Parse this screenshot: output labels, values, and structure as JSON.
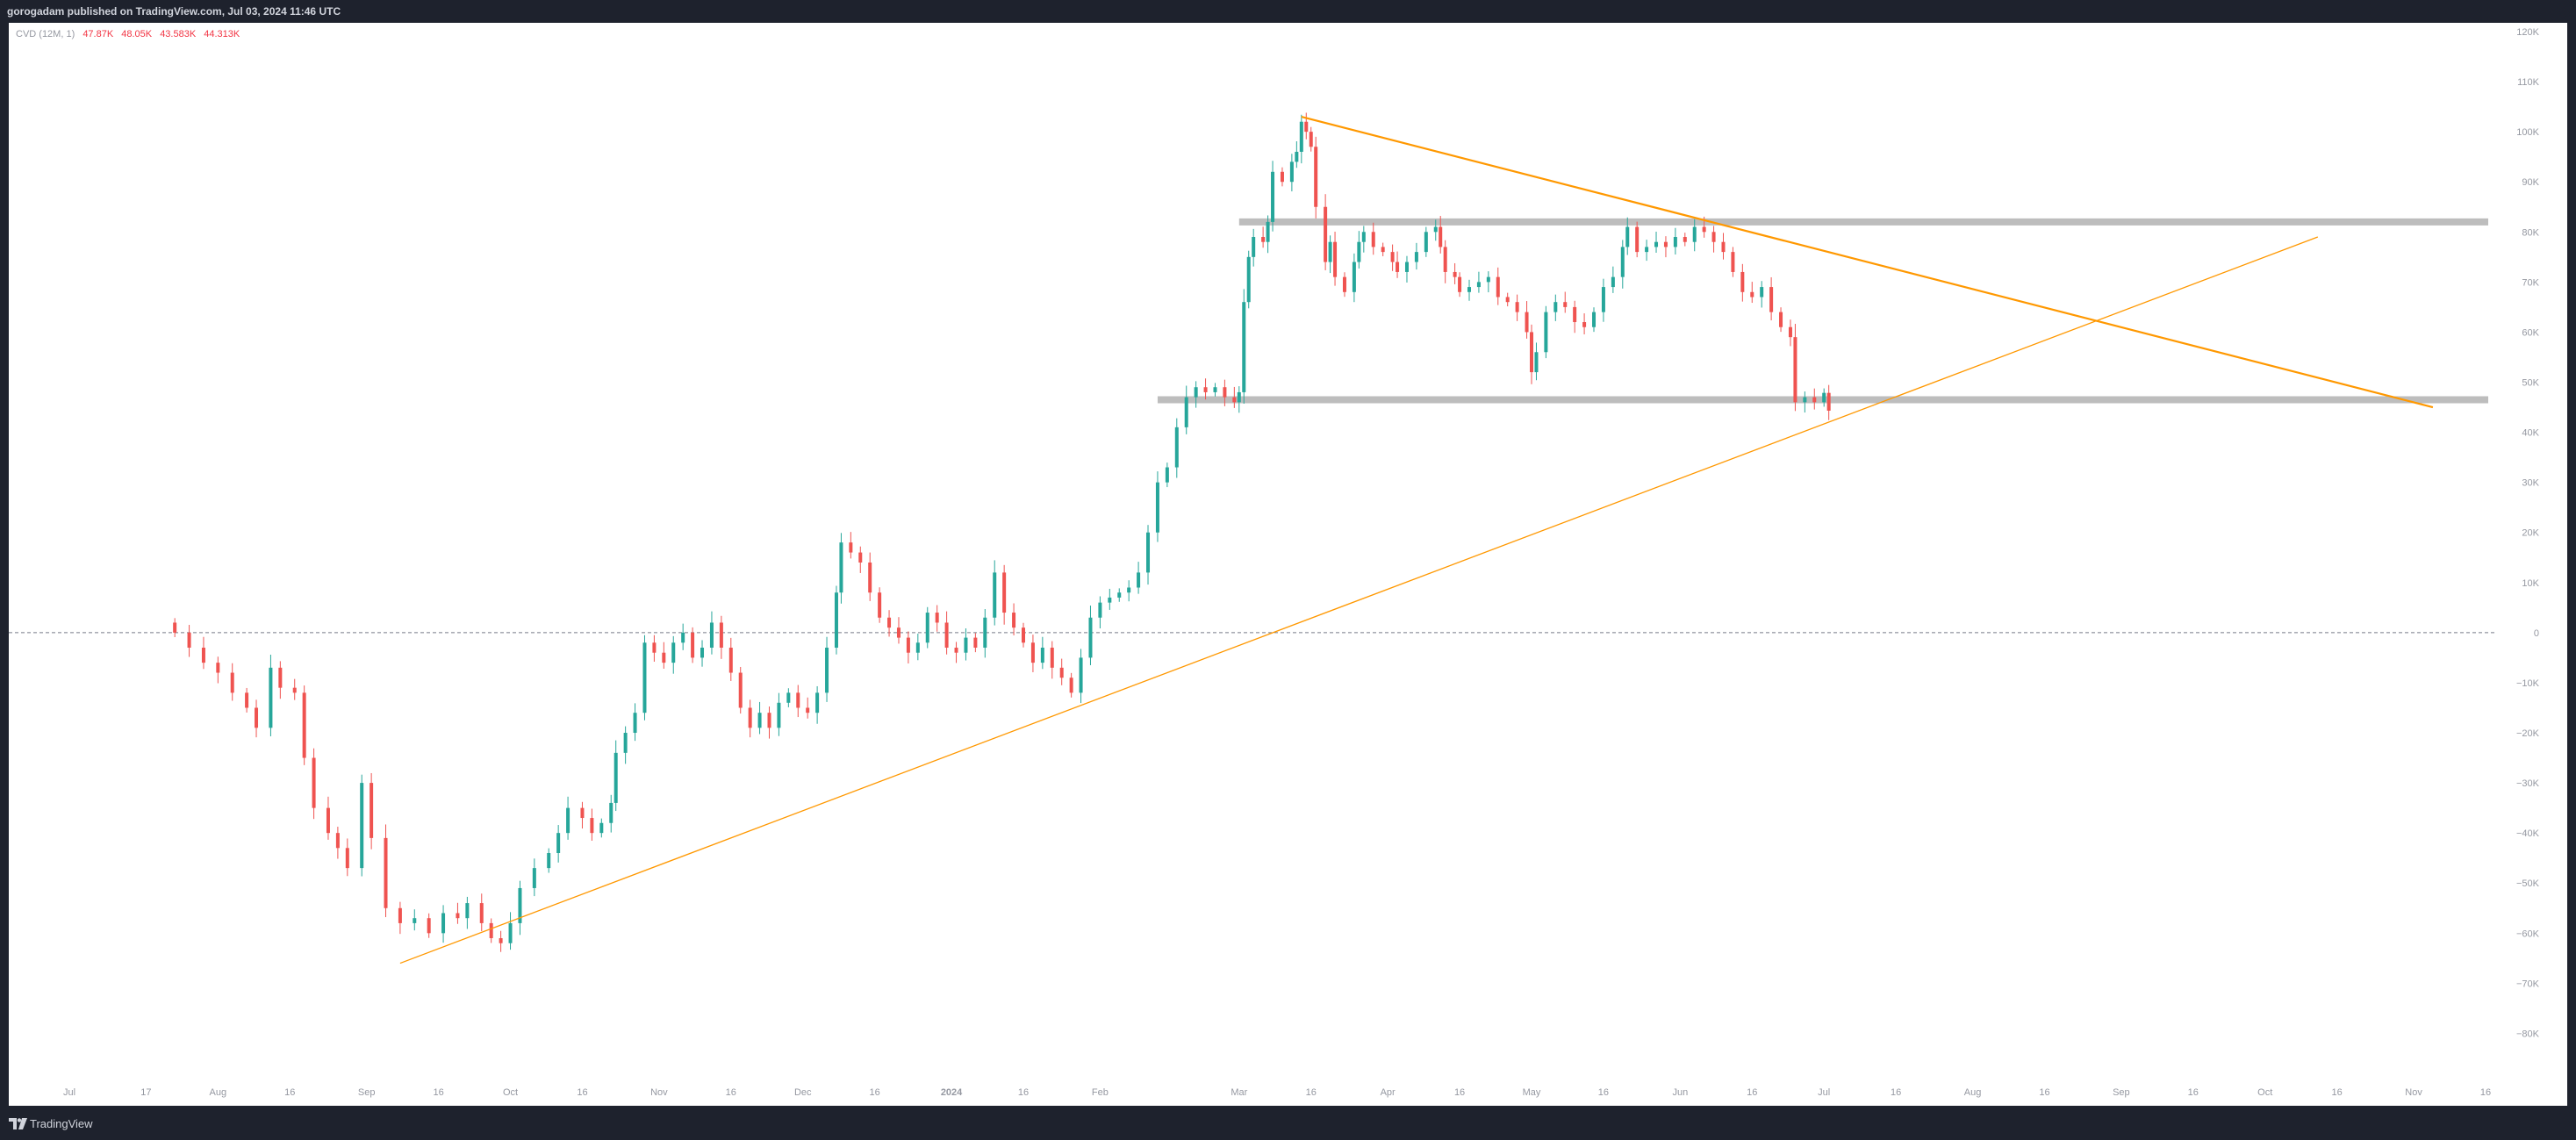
{
  "header": {
    "publish_text": "gorogadam published on TradingView.com, Jul 03, 2024 11:46 UTC"
  },
  "footer": {
    "brand_text": "TradingView"
  },
  "legend": {
    "indicator_label": "CVD (12M, 1)",
    "open": "47.87K",
    "high": "48.05K",
    "low": "43.583K",
    "close": "44.313K"
  },
  "colors": {
    "up": "#26a69a",
    "down": "#ef5350",
    "trendline": "#ff9800",
    "zone": "#bdbdbd",
    "axis_text": "#9598a1"
  },
  "chart_data": {
    "type": "candlestick",
    "title": "",
    "xlabel": "",
    "ylabel": "",
    "ylim": [
      -85000,
      120000
    ],
    "y_ticks": [
      120000,
      110000,
      100000,
      90000,
      80000,
      70000,
      60000,
      50000,
      40000,
      30000,
      20000,
      10000,
      0,
      -10000,
      -20000,
      -30000,
      -40000,
      -50000,
      -60000,
      -70000,
      -80000
    ],
    "y_tick_labels": [
      "120K",
      "110K",
      "100K",
      "90K",
      "80K",
      "70K",
      "60K",
      "50K",
      "40K",
      "30K",
      "20K",
      "10K",
      "0",
      "−10K",
      "−20K",
      "−30K",
      "−40K",
      "−50K",
      "−60K",
      "−70K",
      "−80K"
    ],
    "x_ticks": [
      {
        "date": "2023-07-01",
        "label": "Jul"
      },
      {
        "date": "2023-07-17",
        "label": "17"
      },
      {
        "date": "2023-08-01",
        "label": "Aug"
      },
      {
        "date": "2023-08-16",
        "label": "16"
      },
      {
        "date": "2023-09-01",
        "label": "Sep"
      },
      {
        "date": "2023-09-16",
        "label": "16"
      },
      {
        "date": "2023-10-01",
        "label": "Oct"
      },
      {
        "date": "2023-10-16",
        "label": "16"
      },
      {
        "date": "2023-11-01",
        "label": "Nov"
      },
      {
        "date": "2023-11-16",
        "label": "16"
      },
      {
        "date": "2023-12-01",
        "label": "Dec"
      },
      {
        "date": "2023-12-16",
        "label": "16"
      },
      {
        "date": "2024-01-01",
        "label": "2024"
      },
      {
        "date": "2024-01-16",
        "label": "16"
      },
      {
        "date": "2024-02-01",
        "label": "Feb"
      },
      {
        "date": "2024-03-01",
        "label": "Mar"
      },
      {
        "date": "2024-03-16",
        "label": "16"
      },
      {
        "date": "2024-04-01",
        "label": "Apr"
      },
      {
        "date": "2024-04-16",
        "label": "16"
      },
      {
        "date": "2024-05-01",
        "label": "May"
      },
      {
        "date": "2024-05-16",
        "label": "16"
      },
      {
        "date": "2024-06-01",
        "label": "Jun"
      },
      {
        "date": "2024-06-16",
        "label": "16"
      },
      {
        "date": "2024-07-01",
        "label": "Jul"
      },
      {
        "date": "2024-07-16",
        "label": "16"
      },
      {
        "date": "2024-08-01",
        "label": "Aug"
      },
      {
        "date": "2024-08-16",
        "label": "16"
      },
      {
        "date": "2024-09-01",
        "label": "Sep"
      },
      {
        "date": "2024-09-16",
        "label": "16"
      },
      {
        "date": "2024-10-01",
        "label": "Oct"
      },
      {
        "date": "2024-10-16",
        "label": "16"
      },
      {
        "date": "2024-11-01",
        "label": "Nov"
      },
      {
        "date": "2024-11-16",
        "label": "16"
      }
    ],
    "zero_line": 0,
    "series": [
      {
        "name": "CVD",
        "points": [
          {
            "date": "2023-07-23",
            "close": 0
          },
          {
            "date": "2023-07-26",
            "close": -3000
          },
          {
            "date": "2023-07-29",
            "close": -6000
          },
          {
            "date": "2023-08-01",
            "close": -8000
          },
          {
            "date": "2023-08-04",
            "close": -12000
          },
          {
            "date": "2023-08-07",
            "close": -15000
          },
          {
            "date": "2023-08-09",
            "close": -19000
          },
          {
            "date": "2023-08-12",
            "close": -7000
          },
          {
            "date": "2023-08-14",
            "close": -11000
          },
          {
            "date": "2023-08-17",
            "close": -12000
          },
          {
            "date": "2023-08-19",
            "close": -25000
          },
          {
            "date": "2023-08-21",
            "close": -35000
          },
          {
            "date": "2023-08-24",
            "close": -40000
          },
          {
            "date": "2023-08-26",
            "close": -43000
          },
          {
            "date": "2023-08-28",
            "close": -47000
          },
          {
            "date": "2023-08-31",
            "close": -30000
          },
          {
            "date": "2023-09-02",
            "close": -41000
          },
          {
            "date": "2023-09-05",
            "close": -55000
          },
          {
            "date": "2023-09-08",
            "close": -58000
          },
          {
            "date": "2023-09-11",
            "close": -57000
          },
          {
            "date": "2023-09-14",
            "close": -60000
          },
          {
            "date": "2023-09-17",
            "close": -56000
          },
          {
            "date": "2023-09-20",
            "close": -57000
          },
          {
            "date": "2023-09-22",
            "close": -54000
          },
          {
            "date": "2023-09-25",
            "close": -58000
          },
          {
            "date": "2023-09-27",
            "close": -61000
          },
          {
            "date": "2023-09-29",
            "close": -62000
          },
          {
            "date": "2023-10-01",
            "close": -58000
          },
          {
            "date": "2023-10-03",
            "close": -51000
          },
          {
            "date": "2023-10-06",
            "close": -47000
          },
          {
            "date": "2023-10-09",
            "close": -44000
          },
          {
            "date": "2023-10-11",
            "close": -40000
          },
          {
            "date": "2023-10-13",
            "close": -35000
          },
          {
            "date": "2023-10-16",
            "close": -37000
          },
          {
            "date": "2023-10-18",
            "close": -40000
          },
          {
            "date": "2023-10-20",
            "close": -38000
          },
          {
            "date": "2023-10-22",
            "close": -34000
          },
          {
            "date": "2023-10-23",
            "close": -24000
          },
          {
            "date": "2023-10-25",
            "close": -20000
          },
          {
            "date": "2023-10-27",
            "close": -16000
          },
          {
            "date": "2023-10-29",
            "close": -2000
          },
          {
            "date": "2023-10-31",
            "close": -4000
          },
          {
            "date": "2023-11-02",
            "close": -6000
          },
          {
            "date": "2023-11-04",
            "close": -2000
          },
          {
            "date": "2023-11-06",
            "close": 0
          },
          {
            "date": "2023-11-08",
            "close": -5000
          },
          {
            "date": "2023-11-10",
            "close": -3000
          },
          {
            "date": "2023-11-12",
            "close": 2000
          },
          {
            "date": "2023-11-14",
            "close": -3000
          },
          {
            "date": "2023-11-16",
            "close": -8000
          },
          {
            "date": "2023-11-18",
            "close": -15000
          },
          {
            "date": "2023-11-20",
            "close": -19000
          },
          {
            "date": "2023-11-22",
            "close": -16000
          },
          {
            "date": "2023-11-24",
            "close": -19000
          },
          {
            "date": "2023-11-26",
            "close": -14000
          },
          {
            "date": "2023-11-28",
            "close": -12000
          },
          {
            "date": "2023-11-30",
            "close": -15000
          },
          {
            "date": "2023-12-02",
            "close": -16000
          },
          {
            "date": "2023-12-04",
            "close": -12000
          },
          {
            "date": "2023-12-06",
            "close": -3000
          },
          {
            "date": "2023-12-08",
            "close": 8000
          },
          {
            "date": "2023-12-09",
            "close": 18000
          },
          {
            "date": "2023-12-11",
            "close": 16000
          },
          {
            "date": "2023-12-13",
            "close": 14000
          },
          {
            "date": "2023-12-15",
            "close": 8000
          },
          {
            "date": "2023-12-17",
            "close": 3000
          },
          {
            "date": "2023-12-19",
            "close": 1000
          },
          {
            "date": "2023-12-21",
            "close": -1000
          },
          {
            "date": "2023-12-23",
            "close": -4000
          },
          {
            "date": "2023-12-25",
            "close": -2000
          },
          {
            "date": "2023-12-27",
            "close": 4000
          },
          {
            "date": "2023-12-29",
            "close": 2000
          },
          {
            "date": "2023-12-31",
            "close": -3000
          },
          {
            "date": "2024-01-02",
            "close": -4000
          },
          {
            "date": "2024-01-04",
            "close": -1000
          },
          {
            "date": "2024-01-06",
            "close": -3000
          },
          {
            "date": "2024-01-08",
            "close": 3000
          },
          {
            "date": "2024-01-10",
            "close": 12000
          },
          {
            "date": "2024-01-12",
            "close": 4000
          },
          {
            "date": "2024-01-14",
            "close": 1000
          },
          {
            "date": "2024-01-16",
            "close": -2000
          },
          {
            "date": "2024-01-18",
            "close": -6000
          },
          {
            "date": "2024-01-20",
            "close": -3000
          },
          {
            "date": "2024-01-22",
            "close": -7000
          },
          {
            "date": "2024-01-24",
            "close": -9000
          },
          {
            "date": "2024-01-26",
            "close": -12000
          },
          {
            "date": "2024-01-28",
            "close": -5000
          },
          {
            "date": "2024-01-30",
            "close": 3000
          },
          {
            "date": "2024-02-01",
            "close": 6000
          },
          {
            "date": "2024-02-03",
            "close": 7000
          },
          {
            "date": "2024-02-05",
            "close": 8000
          },
          {
            "date": "2024-02-07",
            "close": 9000
          },
          {
            "date": "2024-02-09",
            "close": 12000
          },
          {
            "date": "2024-02-11",
            "close": 20000
          },
          {
            "date": "2024-02-13",
            "close": 30000
          },
          {
            "date": "2024-02-15",
            "close": 33000
          },
          {
            "date": "2024-02-17",
            "close": 41000
          },
          {
            "date": "2024-02-19",
            "close": 47000
          },
          {
            "date": "2024-02-21",
            "close": 49000
          },
          {
            "date": "2024-02-23",
            "close": 48000
          },
          {
            "date": "2024-02-25",
            "close": 49000
          },
          {
            "date": "2024-02-27",
            "close": 47000
          },
          {
            "date": "2024-02-29",
            "close": 46000
          },
          {
            "date": "2024-03-01",
            "close": 48000
          },
          {
            "date": "2024-03-02",
            "close": 66000
          },
          {
            "date": "2024-03-03",
            "close": 75000
          },
          {
            "date": "2024-03-04",
            "close": 79000
          },
          {
            "date": "2024-03-06",
            "close": 78000
          },
          {
            "date": "2024-03-07",
            "close": 82000
          },
          {
            "date": "2024-03-08",
            "close": 92000
          },
          {
            "date": "2024-03-10",
            "close": 90000
          },
          {
            "date": "2024-03-12",
            "close": 94000
          },
          {
            "date": "2024-03-13",
            "close": 96000
          },
          {
            "date": "2024-03-14",
            "close": 102000
          },
          {
            "date": "2024-03-15",
            "close": 100000
          },
          {
            "date": "2024-03-16",
            "close": 97000
          },
          {
            "date": "2024-03-17",
            "close": 85000
          },
          {
            "date": "2024-03-19",
            "close": 74000
          },
          {
            "date": "2024-03-20",
            "close": 78000
          },
          {
            "date": "2024-03-21",
            "close": 71000
          },
          {
            "date": "2024-03-23",
            "close": 68000
          },
          {
            "date": "2024-03-25",
            "close": 74000
          },
          {
            "date": "2024-03-26",
            "close": 78000
          },
          {
            "date": "2024-03-27",
            "close": 80000
          },
          {
            "date": "2024-03-29",
            "close": 77000
          },
          {
            "date": "2024-03-31",
            "close": 76000
          },
          {
            "date": "2024-04-02",
            "close": 74000
          },
          {
            "date": "2024-04-03",
            "close": 72000
          },
          {
            "date": "2024-04-05",
            "close": 74000
          },
          {
            "date": "2024-04-07",
            "close": 76000
          },
          {
            "date": "2024-04-09",
            "close": 80000
          },
          {
            "date": "2024-04-11",
            "close": 81000
          },
          {
            "date": "2024-04-12",
            "close": 77000
          },
          {
            "date": "2024-04-13",
            "close": 72000
          },
          {
            "date": "2024-04-15",
            "close": 71000
          },
          {
            "date": "2024-04-16",
            "close": 68000
          },
          {
            "date": "2024-04-18",
            "close": 69000
          },
          {
            "date": "2024-04-20",
            "close": 70000
          },
          {
            "date": "2024-04-22",
            "close": 71000
          },
          {
            "date": "2024-04-24",
            "close": 67000
          },
          {
            "date": "2024-04-26",
            "close": 66000
          },
          {
            "date": "2024-04-28",
            "close": 64000
          },
          {
            "date": "2024-04-30",
            "close": 60000
          },
          {
            "date": "2024-05-01",
            "close": 52000
          },
          {
            "date": "2024-05-02",
            "close": 56000
          },
          {
            "date": "2024-05-04",
            "close": 64000
          },
          {
            "date": "2024-05-06",
            "close": 66000
          },
          {
            "date": "2024-05-08",
            "close": 65000
          },
          {
            "date": "2024-05-10",
            "close": 62000
          },
          {
            "date": "2024-05-12",
            "close": 61000
          },
          {
            "date": "2024-05-14",
            "close": 64000
          },
          {
            "date": "2024-05-16",
            "close": 69000
          },
          {
            "date": "2024-05-18",
            "close": 71000
          },
          {
            "date": "2024-05-20",
            "close": 77000
          },
          {
            "date": "2024-05-21",
            "close": 81000
          },
          {
            "date": "2024-05-23",
            "close": 76000
          },
          {
            "date": "2024-05-25",
            "close": 77000
          },
          {
            "date": "2024-05-27",
            "close": 78000
          },
          {
            "date": "2024-05-29",
            "close": 77000
          },
          {
            "date": "2024-05-31",
            "close": 79000
          },
          {
            "date": "2024-06-02",
            "close": 78000
          },
          {
            "date": "2024-06-04",
            "close": 81000
          },
          {
            "date": "2024-06-06",
            "close": 80000
          },
          {
            "date": "2024-06-08",
            "close": 78000
          },
          {
            "date": "2024-06-10",
            "close": 76000
          },
          {
            "date": "2024-06-12",
            "close": 72000
          },
          {
            "date": "2024-06-14",
            "close": 68000
          },
          {
            "date": "2024-06-16",
            "close": 67000
          },
          {
            "date": "2024-06-18",
            "close": 69000
          },
          {
            "date": "2024-06-20",
            "close": 64000
          },
          {
            "date": "2024-06-22",
            "close": 61000
          },
          {
            "date": "2024-06-24",
            "close": 59000
          },
          {
            "date": "2024-06-25",
            "close": 46000
          },
          {
            "date": "2024-06-27",
            "close": 47000
          },
          {
            "date": "2024-06-29",
            "close": 46000
          },
          {
            "date": "2024-07-01",
            "close": 47870
          },
          {
            "date": "2024-07-02",
            "close": 44313
          }
        ]
      }
    ],
    "annotations": {
      "trendlines": [
        {
          "x1": "2023-09-08",
          "y1": -66000,
          "x2": "2024-10-12",
          "y2": 79000
        },
        {
          "x1": "2024-03-14",
          "y1": 103000,
          "x2": "2024-11-05",
          "y2": 45000
        }
      ],
      "horizontal_zones": [
        {
          "x_start": "2024-03-01",
          "y": 82000
        },
        {
          "x_start": "2024-02-13",
          "y": 46500
        }
      ]
    }
  }
}
